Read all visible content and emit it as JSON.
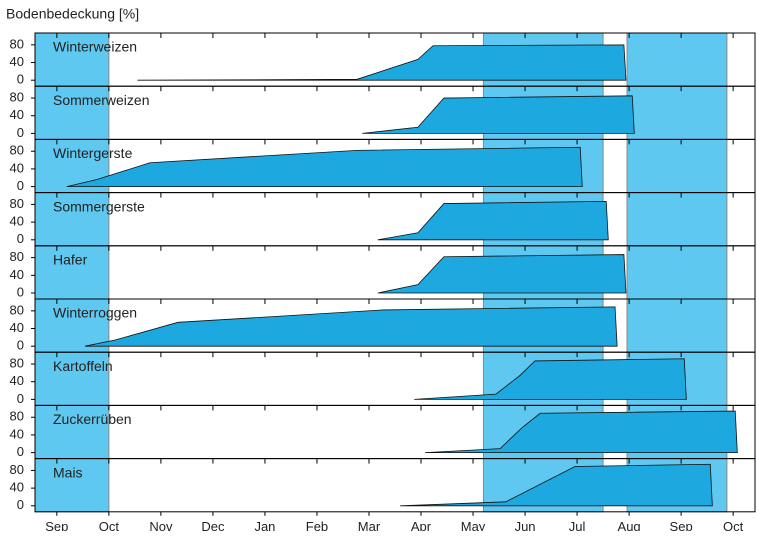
{
  "chart_data": {
    "type": "area",
    "title": "Bodenbedeckung [%]",
    "xlim": [
      -0.42,
      13.42
    ],
    "xticks": [
      {
        "value": 0,
        "label": "Sep"
      },
      {
        "value": 1,
        "label": "Oct"
      },
      {
        "value": 2,
        "label": "Nov"
      },
      {
        "value": 3,
        "label": "Dec"
      },
      {
        "value": 4,
        "label": "Jan"
      },
      {
        "value": 5,
        "label": "Feb"
      },
      {
        "value": 6,
        "label": "Mar"
      },
      {
        "value": 7,
        "label": "Apr"
      },
      {
        "value": 8,
        "label": "May"
      },
      {
        "value": 9,
        "label": "Jun"
      },
      {
        "value": 10,
        "label": "Jul"
      },
      {
        "value": 11,
        "label": "Aug"
      },
      {
        "value": 12,
        "label": "Sep"
      },
      {
        "value": 13,
        "label": "Oct"
      }
    ],
    "ylim": [
      0,
      100
    ],
    "yticks": [
      0,
      40,
      80
    ],
    "shaded_ranges": [
      [
        -0.42,
        1
      ],
      [
        8.2,
        10.5
      ],
      [
        10.96,
        12.88
      ]
    ],
    "shade_color": "#5ec8f0",
    "series": [
      {
        "name": "Winterweizen",
        "color": "#1ea8e0",
        "x": [
          1.55,
          5.77,
          6.94,
          7.23,
          10.9,
          10.94
        ],
        "values": [
          0,
          2,
          47,
          78,
          80,
          0
        ]
      },
      {
        "name": "Sommerweizen",
        "color": "#1ea8e0",
        "x": [
          5.87,
          6.94,
          7.44,
          11.06,
          11.1
        ],
        "values": [
          0,
          14,
          80,
          85,
          0
        ]
      },
      {
        "name": "Wintergerste",
        "color": "#1ea8e0",
        "x": [
          0.19,
          0.77,
          1.79,
          5.77,
          10.06,
          10.1
        ],
        "values": [
          0,
          16,
          54,
          82,
          89,
          0
        ]
      },
      {
        "name": "Sommergerste",
        "color": "#1ea8e0",
        "x": [
          6.17,
          6.94,
          7.44,
          10.56,
          10.6
        ],
        "values": [
          0,
          16,
          82,
          87,
          0
        ]
      },
      {
        "name": "Hafer",
        "color": "#1ea8e0",
        "x": [
          6.17,
          6.94,
          7.44,
          10.9,
          10.94
        ],
        "values": [
          0,
          19,
          82,
          87,
          0
        ]
      },
      {
        "name": "Winterroggen",
        "color": "#1ea8e0",
        "x": [
          0.54,
          1.12,
          2.33,
          6.27,
          10.73,
          10.77
        ],
        "values": [
          0,
          14,
          54,
          82,
          89,
          0
        ]
      },
      {
        "name": "Kartoffeln",
        "color": "#1ea8e0",
        "x": [
          6.87,
          8.44,
          8.9,
          9.19,
          12.06,
          12.1
        ],
        "values": [
          0,
          12,
          54,
          87,
          92,
          0
        ]
      },
      {
        "name": "Zuckerrüben",
        "color": "#1ea8e0",
        "x": [
          7.08,
          8.52,
          8.94,
          9.29,
          13.04,
          13.08
        ],
        "values": [
          0,
          9,
          56,
          89,
          94,
          0
        ]
      },
      {
        "name": "Mais",
        "color": "#1ea8e0",
        "x": [
          6.6,
          8.63,
          9.96,
          12.56,
          12.6
        ],
        "values": [
          0,
          9,
          89,
          94,
          0
        ]
      }
    ]
  }
}
